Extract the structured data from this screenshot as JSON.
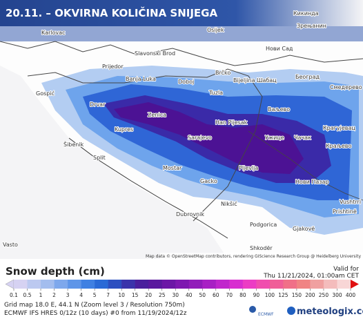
{
  "header": {
    "title": "20.11. – OKVIRNA KOLIČINA SNIJEGA"
  },
  "map": {
    "cities": [
      "Кикинда",
      "Зрењанин",
      "Karlovac",
      "Osijek",
      "Slavonski Brod",
      "Нови Сад",
      "Prijedor",
      "Banja Luka",
      "Doboj",
      "Brčko",
      "Bijeljina",
      "Шабац",
      "Београд",
      "Смедерево",
      "Gospić",
      "Tuzla",
      "Drvar",
      "Ваљево",
      "Zenica",
      "Han Pijesak",
      "Крагујевац",
      "Kupres",
      "Sarajevo",
      "Ужице",
      "Чачак",
      "Šibenik",
      "Краљево",
      "Split",
      "Mostar",
      "Pljevlja",
      "Gacko",
      "Нови Пазар",
      "Nikšić",
      "Vushtrri",
      "Dubrovnik",
      "Prishtinë",
      "Podgorica",
      "Gjakovë",
      "Vasto",
      "Shkodër"
    ],
    "attribution": "Map data © OpenStreetMap contributors, rendering GIScience Research Group @ Heidelberg University"
  },
  "legend": {
    "title": "Snow depth (cm)",
    "valid_label": "Valid for",
    "valid_time": "Thu 11/21/2024, 01:00am CET",
    "levels": [
      0.1,
      0.5,
      1,
      2,
      3,
      4,
      5,
      7,
      10,
      15,
      20,
      25,
      30,
      40,
      50,
      60,
      70,
      80,
      90,
      100,
      125,
      150,
      200,
      250,
      300,
      400
    ],
    "colors": [
      "#d6d2f2",
      "#bcc9f0",
      "#a3bdee",
      "#7ea8ec",
      "#5e95e8",
      "#3f80e2",
      "#2a6ad6",
      "#2c4fc0",
      "#3a33aa",
      "#4a1f9c",
      "#5a189e",
      "#6c16a6",
      "#7e18b0",
      "#921cba",
      "#a820c4",
      "#c026cc",
      "#d82ed0",
      "#ec3cc4",
      "#f04eae",
      "#f05e98",
      "#f07088",
      "#f08484",
      "#f0a0a0",
      "#f4bcbc",
      "#f8d6d6"
    ]
  },
  "footer": {
    "grid": "Grid map 18.0 E, 44.1 N (Zoom level 3 / Resolution 750m)",
    "model": "ECMWF IFS HRES 0/12z (10 days) #0 from 11/19/2024/12z",
    "logo1": "ECMWF",
    "logo2": "meteologix.com"
  }
}
